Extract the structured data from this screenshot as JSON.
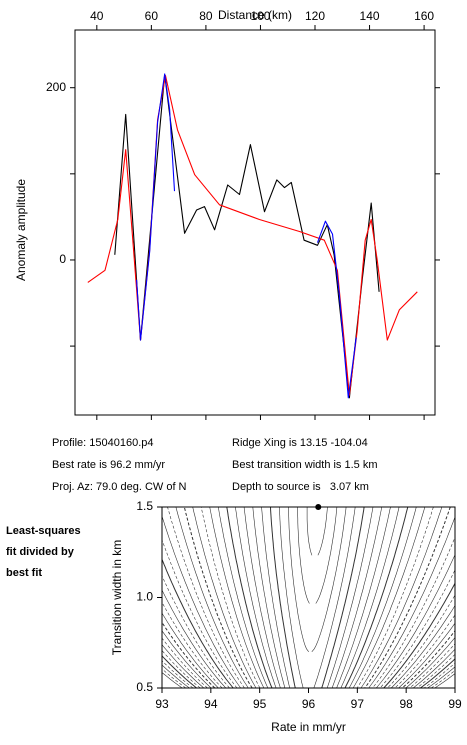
{
  "chart_data": [
    {
      "type": "line",
      "x_label": "Distance (km)",
      "y_label": "Anomaly amplitude",
      "xlim": [
        32,
        164
      ],
      "xticks": [
        40,
        60,
        80,
        100,
        120,
        140,
        160
      ],
      "x_axis_position": "top",
      "ylim": [
        -180,
        267
      ],
      "yticks": [
        0,
        200
      ],
      "y_minor_ticks": [
        -100,
        100
      ],
      "series": [
        {
          "color": "#000000",
          "x": [
            46.6,
            50.6,
            56,
            64.9,
            72.2,
            76.6,
            79.5,
            83.2,
            88,
            92.3,
            96.3,
            101.5,
            106,
            108.8,
            111.3,
            116,
            120.9,
            124.5,
            127,
            132.6,
            137.3,
            140.6,
            143.5
          ],
          "values": [
            6,
            169,
            -93,
            215,
            31,
            58,
            62,
            35,
            87,
            76,
            134,
            56,
            93,
            84,
            90,
            23,
            17,
            41,
            6,
            -160,
            -23,
            66,
            -37
          ]
        },
        {
          "color": "#ff0000",
          "x": [
            36.7,
            43,
            47.7,
            50.6,
            53.2,
            56,
            59.4,
            62.3,
            65.2,
            69.6,
            75.9,
            85,
            99.6,
            114.3,
            123.4,
            128.2,
            132.6,
            135.5,
            138.4,
            140.6,
            142.8,
            146.5,
            150.9,
            157.5
          ],
          "values": [
            -26,
            -12,
            47,
            128,
            23,
            -93,
            12,
            163,
            214,
            151,
            99,
            64,
            47,
            33,
            23,
            -12,
            -157,
            -81,
            23,
            47,
            0,
            -93,
            -58,
            -37
          ]
        },
        {
          "color": "#0000ff",
          "x": [
            54.6,
            56,
            59.4,
            62.3,
            64.9,
            66.7,
            68.5,
            94,
            120.9,
            123.8,
            126.4,
            128.9,
            132.2,
            135.1
          ],
          "values": [
            -23,
            -93,
            10,
            160,
            216,
            175,
            80,
            null,
            20,
            45,
            30,
            -40,
            -160,
            -90
          ]
        }
      ],
      "annotations": [
        "Profile: 15040160.p4",
        "Best rate is 96.2 mm/yr",
        "Proj. Az: 79.0 deg. CW of N",
        "Ridge Xing is 13.15 -104.04",
        "Best transition width is 1.5 km",
        "Depth to source is   3.07 km"
      ]
    },
    {
      "type": "contour",
      "x_label": "Rate in mm/yr",
      "y_label": "Transition width in km",
      "xlim": [
        93,
        99
      ],
      "xticks": [
        93,
        94,
        95,
        96,
        97,
        98,
        99
      ],
      "ylim": [
        0.5,
        1.5
      ],
      "yticks": [
        {
          "value": 0.5,
          "label": "0.5"
        },
        {
          "value": 1.0,
          "label": "1.0"
        },
        {
          "value": 1.5,
          "label": "1.5"
        }
      ],
      "points": {
        "x": [
          96.2
        ],
        "y": [
          1.5
        ],
        "color": "#000000"
      },
      "annotations": [
        "Least-squares",
        "fit divided by",
        "best fit"
      ]
    }
  ]
}
